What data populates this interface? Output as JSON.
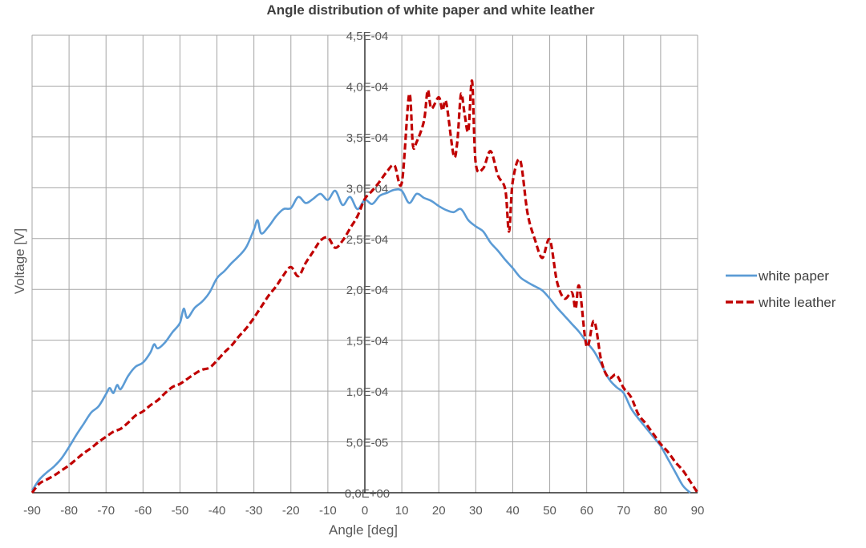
{
  "chart_data": {
    "type": "line",
    "title": "Angle distribution of white paper and white leather",
    "xlabel": "Angle [deg]",
    "ylabel": "Voltage [V]",
    "xlim": [
      -90,
      90
    ],
    "ylim": [
      0,
      0.00045
    ],
    "x_ticks": [
      -90,
      -80,
      -70,
      -60,
      -50,
      -40,
      -30,
      -20,
      -10,
      0,
      10,
      20,
      30,
      40,
      50,
      60,
      70,
      80,
      90
    ],
    "x_tick_labels": [
      "-90",
      "-80",
      "-70",
      "-60",
      "-50",
      "-40",
      "-30",
      "-20",
      "-10",
      "0",
      "10",
      "20",
      "30",
      "40",
      "50",
      "60",
      "70",
      "80",
      "90"
    ],
    "y_ticks": [
      0,
      5e-05,
      0.0001,
      0.00015,
      0.0002,
      0.00025,
      0.0003,
      0.00035,
      0.0004,
      0.00045
    ],
    "y_tick_labels": [
      "0,0E+00",
      "5,0E-05",
      "1,0E-04",
      "1,5E-04",
      "2,0E-04",
      "2,5E-04",
      "3,0E-04",
      "3,5E-04",
      "4,0E-04",
      "4,5E-04"
    ],
    "grid": true,
    "legend_position": "right",
    "series": [
      {
        "name": "white paper",
        "color": "#5b9bd5",
        "style": "solid",
        "x": [
          -90,
          -88,
          -86,
          -84,
          -82,
          -80,
          -78,
          -76,
          -74,
          -72,
          -70,
          -69,
          -68,
          -67,
          -66,
          -64,
          -62,
          -60,
          -58,
          -57,
          -56,
          -54,
          -52,
          -50,
          -49,
          -48,
          -46,
          -44,
          -42,
          -40,
          -38,
          -36,
          -34,
          -32,
          -30,
          -29,
          -28,
          -26,
          -24,
          -22,
          -20,
          -18,
          -16,
          -14,
          -12,
          -10,
          -8,
          -6,
          -4,
          -2,
          0,
          2,
          4,
          6,
          8,
          10,
          12,
          14,
          16,
          18,
          20,
          22,
          24,
          26,
          28,
          30,
          32,
          34,
          36,
          38,
          40,
          42,
          44,
          46,
          48,
          50,
          52,
          54,
          56,
          58,
          60,
          62,
          64,
          66,
          68,
          70,
          72,
          74,
          76,
          78,
          80,
          82,
          84,
          86,
          88
        ],
        "y": [
          2e-06,
          1.3e-05,
          2e-05,
          2.6e-05,
          3.4e-05,
          4.5e-05,
          5.7e-05,
          6.8e-05,
          7.9e-05,
          8.5e-05,
          9.7e-05,
          0.000103,
          9.8e-05,
          0.000106,
          0.000102,
          0.000115,
          0.000124,
          0.000128,
          0.000138,
          0.000146,
          0.000142,
          0.000148,
          0.000158,
          0.000167,
          0.000181,
          0.000172,
          0.000182,
          0.000188,
          0.000197,
          0.000211,
          0.000218,
          0.000226,
          0.000233,
          0.000242,
          0.000259,
          0.000268,
          0.000255,
          0.000262,
          0.000272,
          0.000279,
          0.00028,
          0.000291,
          0.000285,
          0.000289,
          0.000294,
          0.000288,
          0.000297,
          0.000283,
          0.000291,
          0.000279,
          0.000288,
          0.000284,
          0.000292,
          0.000295,
          0.000298,
          0.000297,
          0.000285,
          0.000294,
          0.00029,
          0.000287,
          0.000282,
          0.000278,
          0.000276,
          0.000279,
          0.000268,
          0.000262,
          0.000257,
          0.000246,
          0.000238,
          0.000229,
          0.000221,
          0.000212,
          0.000207,
          0.000203,
          0.000199,
          0.000191,
          0.000182,
          0.000174,
          0.000166,
          0.000158,
          0.000148,
          0.000139,
          0.000126,
          0.000112,
          0.000104,
          9.8e-05,
          8.3e-05,
          7.3e-05,
          6.4e-05,
          5.5e-05,
          4.6e-05,
          3.3e-05,
          2e-05,
          7e-06,
          0.0
        ]
      },
      {
        "name": "white leather",
        "color": "#c00000",
        "style": "dashed",
        "x": [
          -90,
          -88,
          -86,
          -84,
          -82,
          -80,
          -78,
          -76,
          -74,
          -72,
          -70,
          -68,
          -66,
          -64,
          -62,
          -60,
          -58,
          -56,
          -54,
          -52,
          -50,
          -48,
          -46,
          -44,
          -42,
          -40,
          -38,
          -36,
          -34,
          -32,
          -30,
          -28,
          -26,
          -24,
          -22,
          -20,
          -18,
          -16,
          -14,
          -12,
          -10,
          -8,
          -6,
          -4,
          -2,
          0,
          2,
          4,
          6,
          8,
          10,
          12,
          13,
          14,
          16,
          17,
          18,
          20,
          21,
          22,
          24,
          25,
          26,
          27,
          28,
          29,
          30,
          32,
          34,
          36,
          38,
          39,
          40,
          42,
          44,
          46,
          48,
          50,
          52,
          54,
          56,
          57,
          58,
          60,
          62,
          64,
          66,
          68,
          70,
          72,
          74,
          76,
          78,
          80,
          82,
          84,
          86,
          88,
          90
        ],
        "y": [
          0.0,
          9e-06,
          1.3e-05,
          1.7e-05,
          2.2e-05,
          2.7e-05,
          3.3e-05,
          3.9e-05,
          4.4e-05,
          5e-05,
          5.5e-05,
          6e-05,
          6.3e-05,
          6.9e-05,
          7.6e-05,
          8e-05,
          8.6e-05,
          9.1e-05,
          9.8e-05,
          0.000104,
          0.000107,
          0.000112,
          0.000117,
          0.000121,
          0.000123,
          0.00013,
          0.000138,
          0.000145,
          0.000154,
          0.000162,
          0.000172,
          0.000183,
          0.000194,
          0.000203,
          0.000214,
          0.000222,
          0.000213,
          0.000226,
          0.000237,
          0.000248,
          0.000251,
          0.000241,
          0.000248,
          0.00026,
          0.000272,
          0.000289,
          0.000297,
          0.000306,
          0.000316,
          0.000322,
          0.000305,
          0.000392,
          0.000342,
          0.000345,
          0.000366,
          0.000396,
          0.000378,
          0.000389,
          0.000376,
          0.000384,
          0.000332,
          0.000345,
          0.000392,
          0.000372,
          0.000356,
          0.000405,
          0.000324,
          0.000319,
          0.000336,
          0.000312,
          0.000298,
          0.000257,
          0.000306,
          0.000327,
          0.000275,
          0.000249,
          0.000231,
          0.000249,
          0.000207,
          0.000191,
          0.000197,
          0.000181,
          0.000203,
          0.000144,
          0.000169,
          0.000129,
          0.000113,
          0.000116,
          0.000103,
          9.4e-05,
          7.7e-05,
          6.8e-05,
          5.8e-05,
          4.8e-05,
          4e-05,
          3e-05,
          2.2e-05,
          1.1e-05,
          0.0
        ]
      }
    ]
  }
}
